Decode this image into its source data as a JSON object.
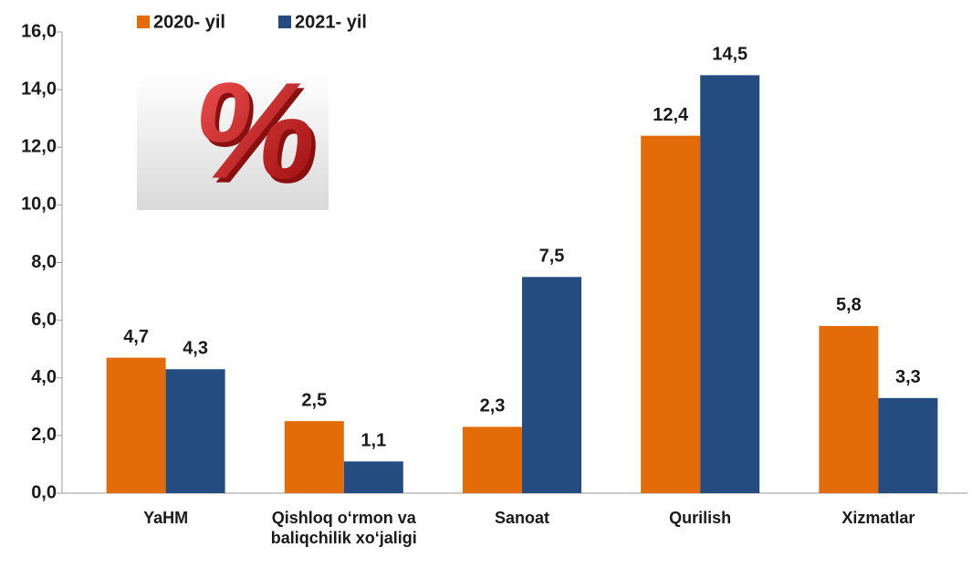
{
  "chart_data": {
    "type": "bar",
    "categories": [
      "YaHM",
      "Qishloq o‘rmon va baliqchilik xo‘jaligi",
      "Sanoat",
      "Qurilish",
      "Xizmatlar"
    ],
    "series": [
      {
        "name": "2020- yil",
        "color": "#e36c09",
        "values": [
          4.7,
          2.5,
          2.3,
          12.4,
          5.8
        ],
        "value_labels": [
          "4,7",
          "2,5",
          "2,3",
          "12,4",
          "5,8"
        ]
      },
      {
        "name": "2021- yil",
        "color": "#254c80",
        "values": [
          4.3,
          1.1,
          7.5,
          14.5,
          3.3
        ],
        "value_labels": [
          "4,3",
          "1,1",
          "7,5",
          "14,5",
          "3,3"
        ]
      }
    ],
    "ylim": [
      0,
      16
    ],
    "yticks": [
      {
        "value": 0,
        "label": "0,0"
      },
      {
        "value": 2,
        "label": "2,0"
      },
      {
        "value": 4,
        "label": "4,0"
      },
      {
        "value": 6,
        "label": "6,0"
      },
      {
        "value": 8,
        "label": "8,0"
      },
      {
        "value": 10,
        "label": "10,0"
      },
      {
        "value": 12,
        "label": "12,0"
      },
      {
        "value": 14,
        "label": "14,0"
      },
      {
        "value": 16,
        "label": "16,0"
      }
    ],
    "grid": false
  }
}
